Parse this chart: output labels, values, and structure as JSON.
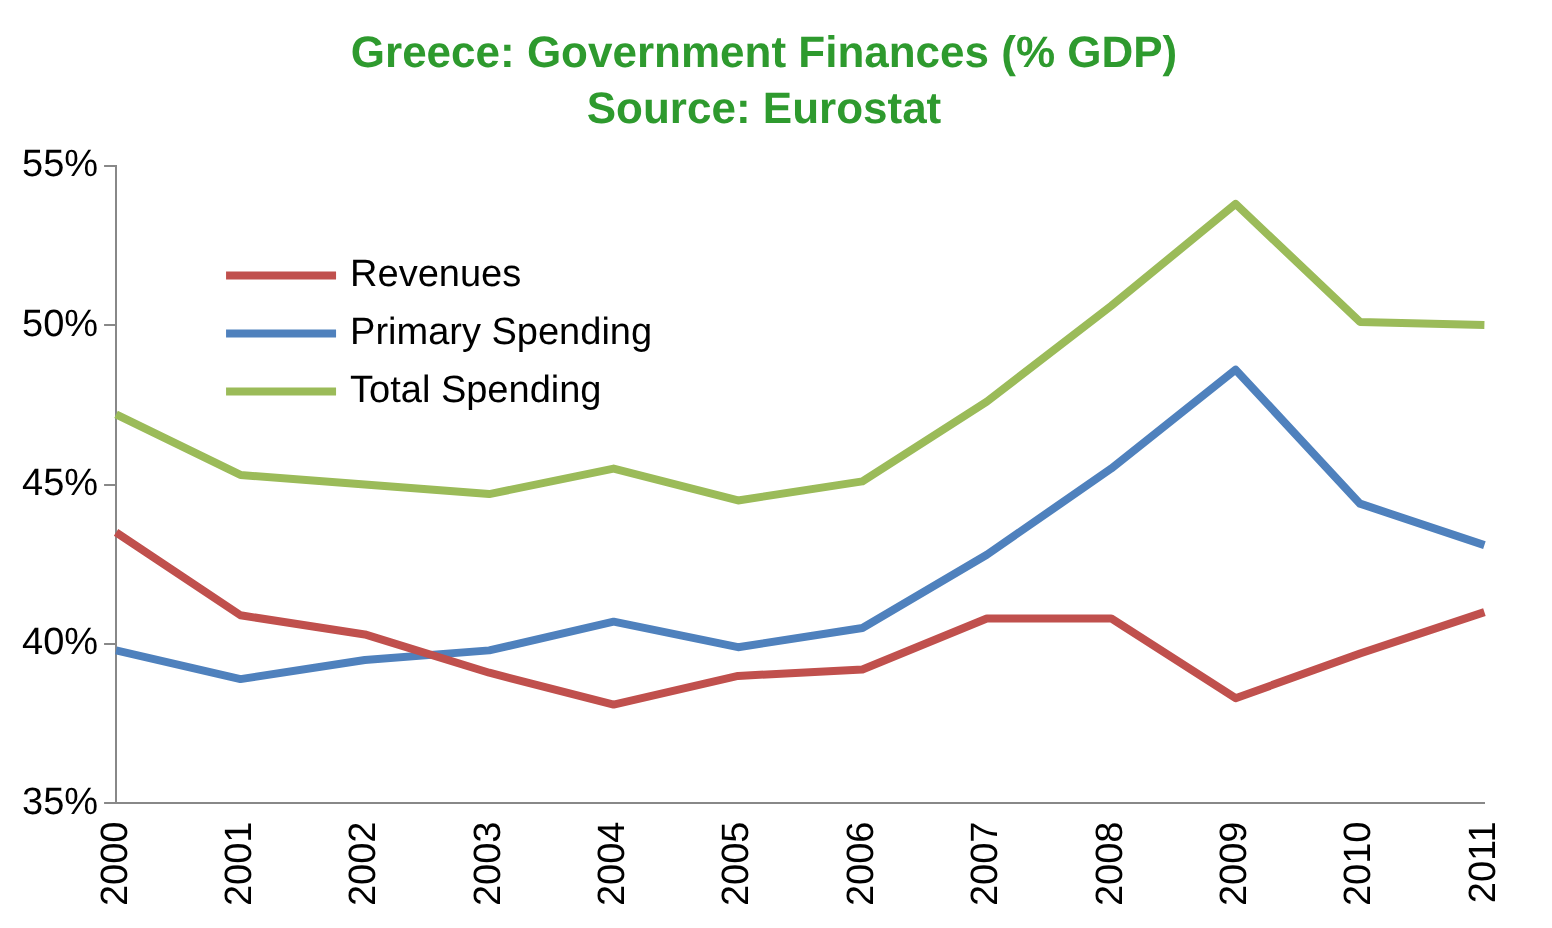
{
  "chart_data": {
    "type": "line",
    "title": "Greece: Government Finances (% GDP)",
    "subtitle": "Source: Eurostat",
    "categories": [
      "2000",
      "2001",
      "2002",
      "2003",
      "2004",
      "2005",
      "2006",
      "2007",
      "2008",
      "2009",
      "2010",
      "2011"
    ],
    "series": [
      {
        "name": "Revenues",
        "color": "#c0504d",
        "values": [
          43.5,
          40.9,
          40.3,
          39.1,
          38.1,
          39.0,
          39.2,
          40.8,
          40.8,
          38.3,
          39.7,
          41.0
        ]
      },
      {
        "name": "Primary Spending",
        "color": "#4f81bd",
        "values": [
          39.8,
          38.9,
          39.5,
          39.8,
          40.7,
          39.9,
          40.5,
          42.8,
          45.5,
          48.6,
          44.4,
          43.1
        ]
      },
      {
        "name": "Total Spending",
        "color": "#9bbb59",
        "values": [
          47.2,
          45.3,
          45.0,
          44.7,
          45.5,
          44.5,
          45.1,
          47.6,
          50.6,
          53.8,
          50.1,
          50.0
        ]
      }
    ],
    "ylim": [
      35,
      55
    ],
    "yticks": [
      {
        "value": 35,
        "label": "35%"
      },
      {
        "value": 40,
        "label": "40%"
      },
      {
        "value": 45,
        "label": "45%"
      },
      {
        "value": 50,
        "label": "50%"
      },
      {
        "value": 55,
        "label": "55%"
      }
    ],
    "grid": false,
    "legend": "top left",
    "marker": "none",
    "line_style": "solid"
  }
}
